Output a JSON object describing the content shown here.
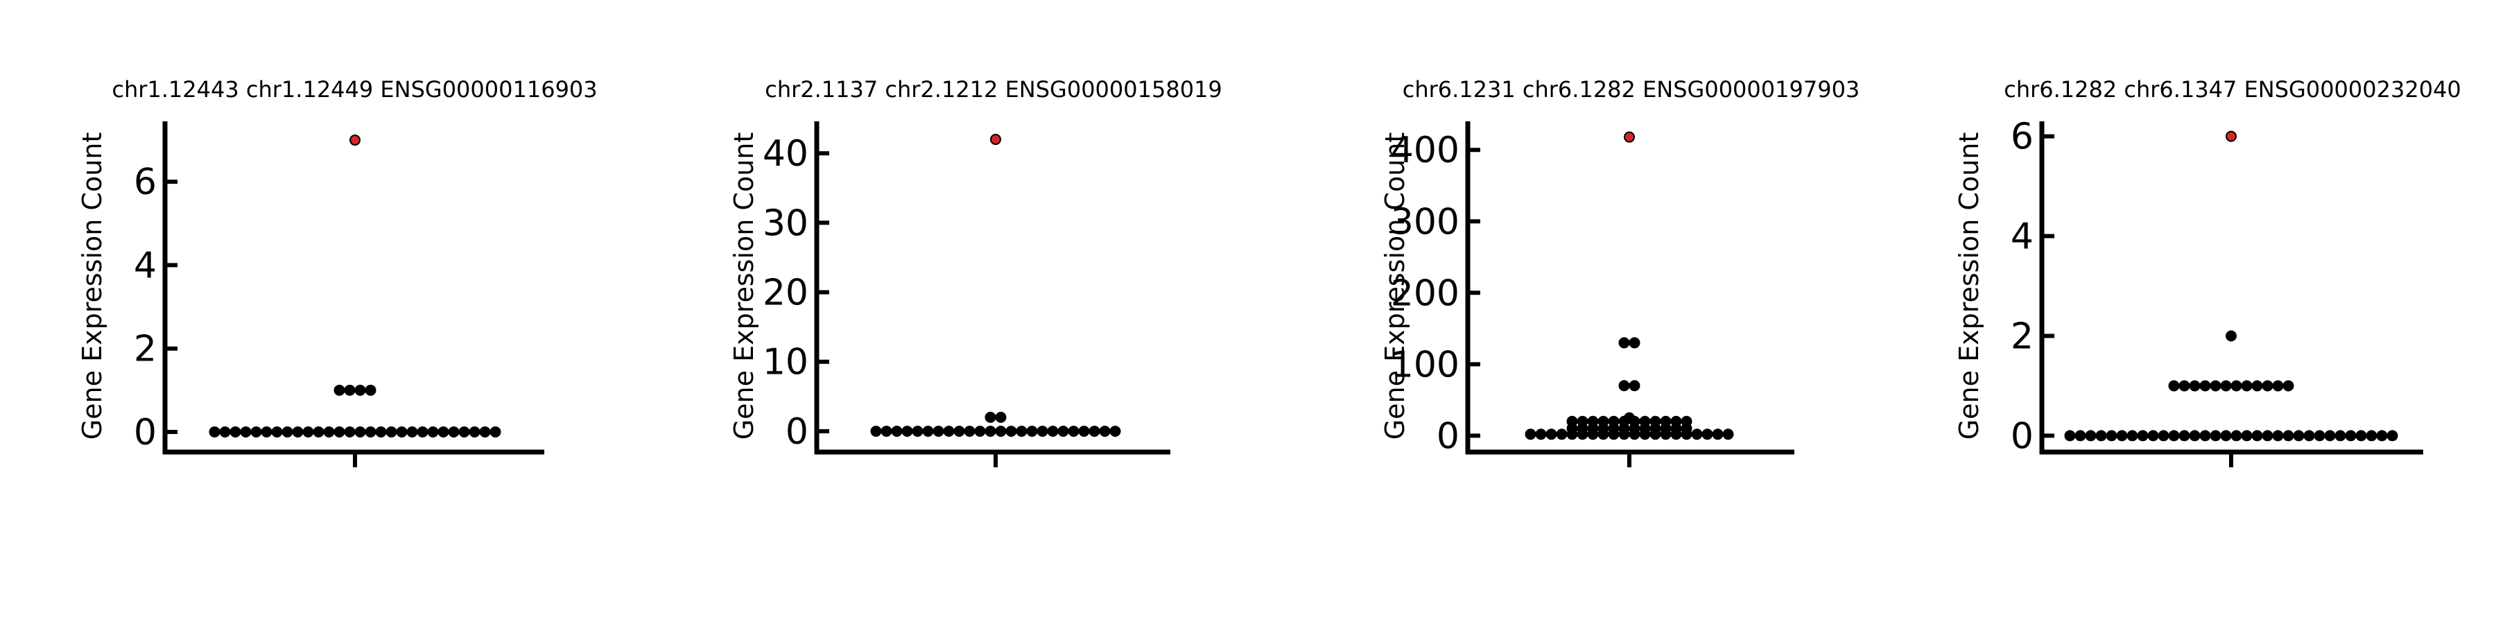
{
  "chart_data": [
    {
      "type": "scatter",
      "title": "chr1.12443 chr1.12449 ENSG00000116903",
      "ylabel": "Gene Expression Count",
      "ylim": [
        -0.45,
        7.45
      ],
      "yticks": [
        0,
        2,
        4,
        6
      ],
      "xticks": [
        ""
      ],
      "grid": false,
      "colors": {
        "point": "#000000",
        "highlight": "#d62728",
        "axis": "#000000"
      },
      "series": [
        {
          "values": [
            0,
            0,
            0,
            0,
            0,
            0,
            0,
            0,
            0,
            0,
            0,
            0,
            0,
            0,
            0,
            0,
            0,
            0,
            0,
            0,
            0,
            0,
            0,
            0,
            0,
            0,
            0,
            0,
            1,
            1,
            1,
            1
          ]
        },
        {
          "values": [
            7
          ]
        }
      ]
    },
    {
      "type": "scatter",
      "title": "chr2.1137 chr2.1212 ENSG00000158019",
      "ylabel": "Gene Expression Count",
      "ylim": [
        -2.8,
        44.6
      ],
      "yticks": [
        0,
        10,
        20,
        30,
        40
      ],
      "xticks": [
        ""
      ],
      "grid": false,
      "colors": {
        "point": "#000000",
        "highlight": "#d62728",
        "axis": "#000000"
      },
      "series": [
        {
          "values": [
            0,
            0,
            0,
            0,
            0,
            0,
            0,
            0,
            0,
            0,
            0,
            0,
            0,
            0,
            0,
            0,
            0,
            0,
            0,
            0,
            0,
            0,
            0,
            0,
            2,
            2
          ]
        },
        {
          "values": [
            42
          ]
        }
      ]
    },
    {
      "type": "scatter",
      "title": "chr6.1231 chr6.1282 ENSG00000197903",
      "ylabel": "Gene Expression Count",
      "ylim": [
        -21,
        440
      ],
      "yticks": [
        0,
        100,
        200,
        300,
        400
      ],
      "xticks": [
        ""
      ],
      "grid": false,
      "colors": {
        "point": "#000000",
        "highlight": "#d62728",
        "axis": "#000000"
      },
      "series": [
        {
          "values": [
            2,
            2,
            2,
            2,
            2,
            2,
            2,
            2,
            2,
            2,
            2,
            2,
            2,
            2,
            2,
            2,
            2,
            2,
            2,
            2,
            10,
            10,
            10,
            10,
            10,
            10,
            10,
            10,
            10,
            10,
            10,
            10,
            20,
            20,
            20,
            20,
            20,
            20,
            20,
            20,
            20,
            20,
            20,
            20,
            25,
            70,
            70,
            130,
            130
          ]
        },
        {
          "values": [
            418
          ]
        }
      ]
    },
    {
      "type": "scatter",
      "title": "chr6.1282 chr6.1347 ENSG00000232040",
      "ylabel": "Gene Expression Count",
      "ylim": [
        -0.3,
        6.3
      ],
      "yticks": [
        0,
        2,
        4,
        6
      ],
      "xticks": [
        ""
      ],
      "grid": false,
      "colors": {
        "point": "#000000",
        "highlight": "#d62728",
        "axis": "#000000"
      },
      "series": [
        {
          "values": [
            0,
            0,
            0,
            0,
            0,
            0,
            0,
            0,
            0,
            0,
            0,
            0,
            0,
            0,
            0,
            0,
            0,
            0,
            0,
            0,
            0,
            0,
            0,
            0,
            0,
            0,
            0,
            0,
            0,
            0,
            0,
            0,
            1,
            1,
            1,
            1,
            1,
            1,
            1,
            1,
            1,
            1,
            1,
            1,
            2
          ]
        },
        {
          "values": [
            6
          ]
        }
      ]
    }
  ]
}
